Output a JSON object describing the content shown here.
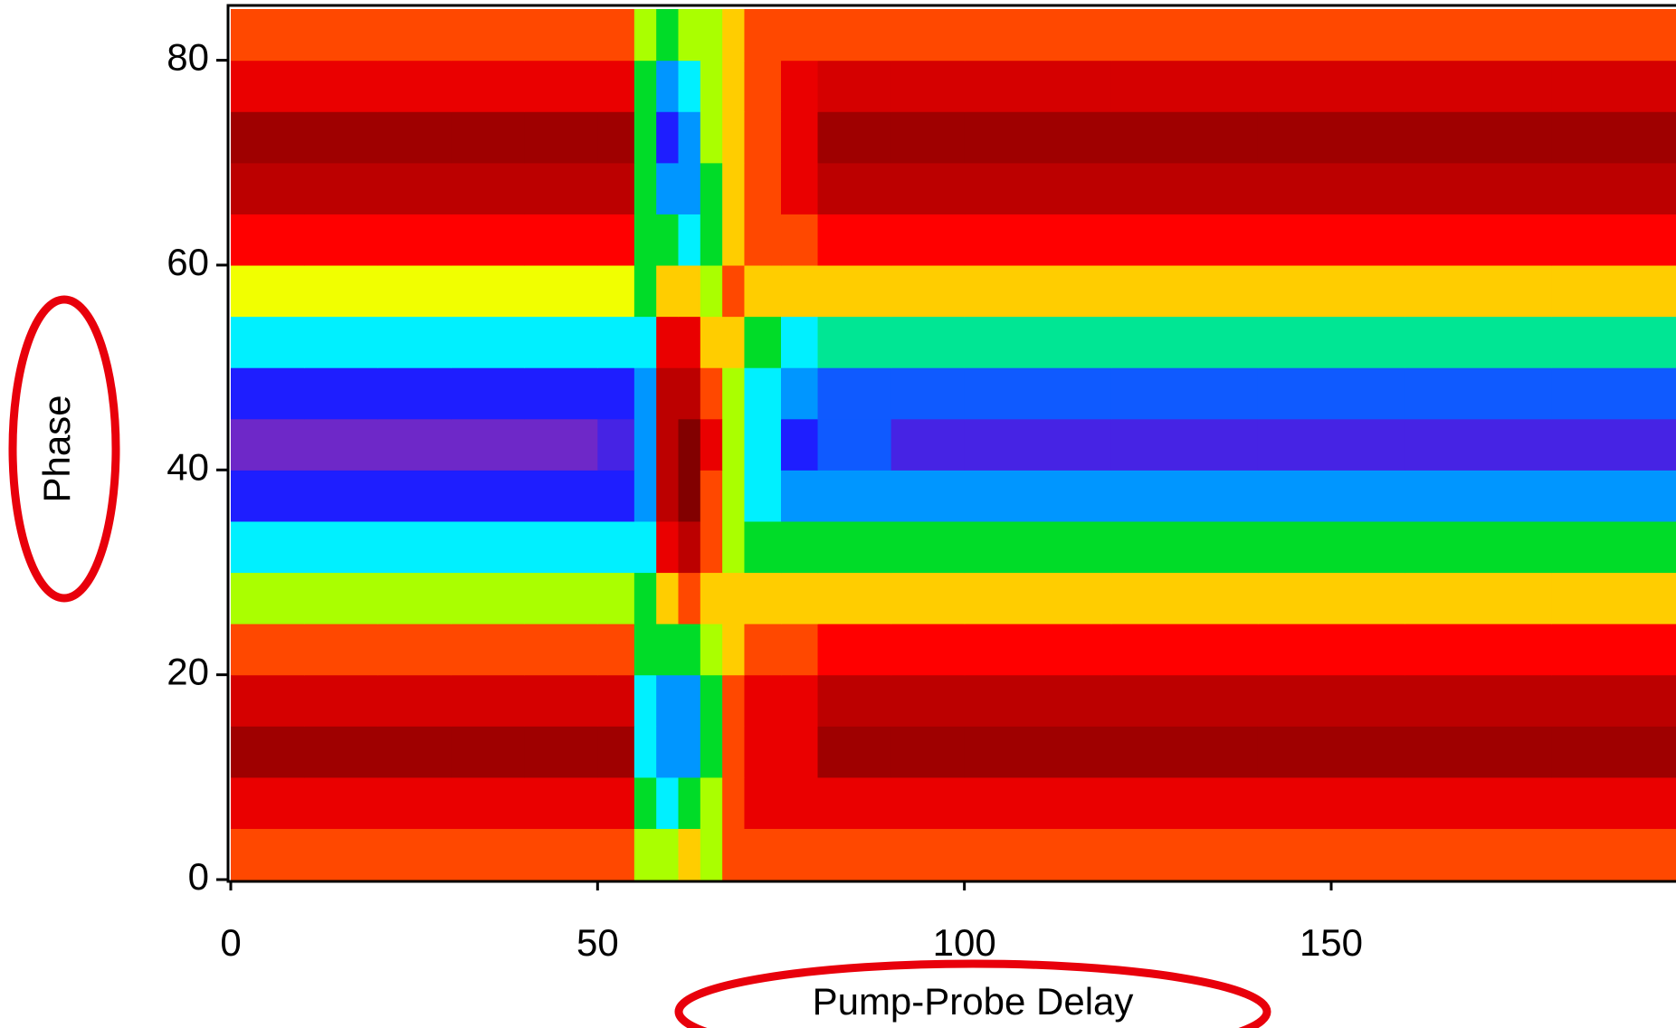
{
  "chart_data": {
    "type": "heatmap",
    "xlabel": "Pump-Probe Delay",
    "ylabel": "Phase",
    "xlim": [
      0,
      197
    ],
    "ylim": [
      0,
      85
    ],
    "xticks": [
      0,
      50,
      100,
      150
    ],
    "yticks": [
      0,
      20,
      40,
      60,
      80
    ],
    "x_edges": [
      0,
      10,
      20,
      30,
      40,
      50,
      55,
      58,
      61,
      64,
      67,
      70,
      75,
      80,
      90,
      100,
      120,
      140,
      160,
      180,
      197
    ],
    "y_edges": [
      0,
      5,
      10,
      15,
      20,
      25,
      30,
      35,
      40,
      45,
      50,
      55,
      60,
      65,
      70,
      75,
      80,
      85
    ],
    "z": [
      [
        7,
        7,
        7,
        7,
        7,
        7,
        5,
        5,
        6,
        5,
        7,
        7,
        7,
        7,
        7,
        7,
        7,
        7,
        7,
        7
      ],
      [
        8,
        8,
        8,
        8,
        8,
        8,
        4,
        3,
        4,
        5,
        7,
        8,
        8,
        8,
        8,
        8,
        8,
        8,
        8,
        8
      ],
      [
        9.5,
        9.5,
        9.5,
        9.5,
        9.5,
        9.5,
        3,
        2,
        2,
        4,
        7,
        8,
        8,
        9.5,
        9.5,
        9.5,
        9.5,
        9.5,
        9.5,
        9.5
      ],
      [
        8.5,
        8.5,
        8.5,
        8.5,
        8.5,
        8.5,
        3,
        2,
        2,
        4,
        7,
        8,
        8,
        9,
        9,
        9,
        9,
        9,
        9,
        9
      ],
      [
        7,
        7,
        7,
        7,
        7,
        7,
        4,
        4,
        4,
        5,
        6,
        7,
        7,
        7.5,
        7.5,
        7.5,
        7.5,
        7.5,
        7.5,
        7.5
      ],
      [
        5,
        5,
        5,
        5,
        5,
        5,
        4,
        6,
        7,
        6,
        6,
        6,
        6,
        6,
        6,
        6,
        6,
        6,
        6,
        6
      ],
      [
        3,
        3,
        3,
        3,
        3,
        3,
        3,
        8,
        9,
        7,
        5,
        4,
        4,
        4,
        4,
        4,
        4,
        4,
        4,
        4
      ],
      [
        1,
        1,
        1,
        1,
        1,
        1,
        2,
        9,
        10,
        7,
        5,
        3,
        2,
        2,
        2,
        2,
        2,
        2,
        2,
        2
      ],
      [
        0,
        0,
        0,
        0,
        0,
        0.5,
        2,
        9,
        10,
        8,
        5,
        3,
        1,
        1.5,
        0.5,
        0.5,
        0.5,
        0.5,
        0.5,
        0.5
      ],
      [
        1,
        1,
        1,
        1,
        1,
        1,
        2,
        9,
        9,
        7,
        5,
        3,
        2,
        1.5,
        1.5,
        1.5,
        1.5,
        1.5,
        1.5,
        1.5
      ],
      [
        3,
        3,
        3,
        3,
        3,
        3,
        3,
        8,
        8,
        6,
        6,
        4,
        3,
        3.5,
        3.5,
        3.5,
        3.5,
        3.5,
        3.5,
        3.5
      ],
      [
        5.5,
        5.5,
        5.5,
        5.5,
        5.5,
        5.5,
        4,
        6,
        6,
        5,
        7,
        6,
        6,
        6,
        6,
        6,
        6,
        6,
        6,
        6
      ],
      [
        7.5,
        7.5,
        7.5,
        7.5,
        7.5,
        7.5,
        4,
        4,
        3,
        4,
        6,
        7,
        7,
        7.5,
        7.5,
        7.5,
        7.5,
        7.5,
        7.5,
        7.5
      ],
      [
        9,
        9,
        9,
        9,
        9,
        9,
        4,
        2,
        2,
        4,
        6,
        7,
        8,
        9,
        9,
        9,
        9,
        9,
        9,
        9
      ],
      [
        9.5,
        9.5,
        9.5,
        9.5,
        9.5,
        9.5,
        4,
        1,
        2,
        5,
        6,
        7,
        8,
        9.5,
        9.5,
        9.5,
        9.5,
        9.5,
        9.5,
        9.5
      ],
      [
        8,
        8,
        8,
        8,
        8,
        8,
        4,
        2,
        3,
        5,
        6,
        7,
        8,
        8.5,
        8.5,
        8.5,
        8.5,
        8.5,
        8.5,
        8.5
      ],
      [
        7,
        7,
        7,
        7,
        7,
        7,
        5,
        4,
        5,
        5,
        6,
        7,
        7,
        7,
        7,
        7,
        7,
        7,
        7,
        7
      ]
    ]
  }
}
